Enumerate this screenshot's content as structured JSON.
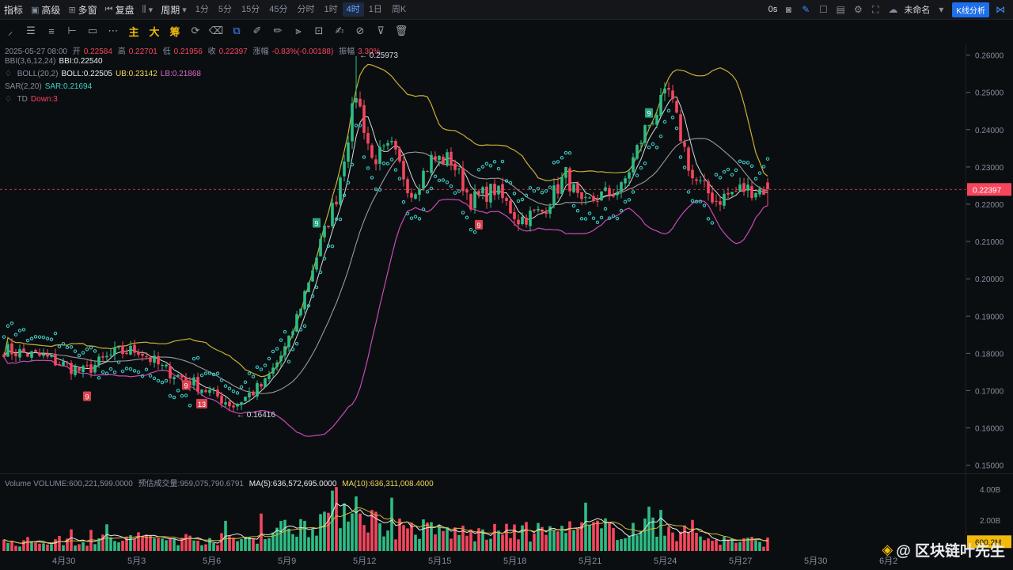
{
  "topbar": {
    "indicators": "指标",
    "advanced": "高级",
    "multi_window": "多窗",
    "replay": "复盘",
    "period_label": "周期",
    "periods": [
      "1分",
      "5分",
      "15分",
      "45分",
      "分时",
      "1时",
      "4时",
      "1日",
      "周K"
    ],
    "active_period": "4时",
    "countdown": "0s",
    "layout_name": "未命名",
    "kline_analysis": "K线分析"
  },
  "legend": {
    "datetime": "2025-05-27 08:00",
    "open_label": "开",
    "open": "0.22584",
    "high_label": "高",
    "high": "0.22701",
    "low_label": "低",
    "low": "0.21956",
    "close_label": "收",
    "close": "0.22397",
    "change_label": "涨幅",
    "change": "-0.83%(-0.00188)",
    "amp_label": "振幅",
    "amp": "3.30%",
    "bbi_name": "BBI(3,6,12,24)",
    "bbi_value": "BBI:0.22540",
    "boll_name": "BOLL(20,2)",
    "boll_value": "BOLL:0.22505",
    "ub_value": "UB:0.23142",
    "lb_value": "LB:0.21868",
    "sar_name": "SAR(2,20)",
    "sar_value": "SAR:0.21694",
    "td_name": "TD",
    "td_value": "Down:3"
  },
  "volume_legend": {
    "volume": "Volume  VOLUME:600,221,599.0000",
    "est": "预估成交量:959,075,790.6791",
    "ma5": "MA(5):636,572,695.0000",
    "ma10": "MA(10):636,311,008.4000"
  },
  "watermark": "@ 区块链叶先生",
  "colors": {
    "up": "#2ebd85",
    "down": "#f6465d",
    "ub": "#c9b037",
    "lb": "#c84bb8",
    "mid": "#d9d9d9",
    "sar": "#3bc7c0"
  },
  "chart_data": {
    "type": "candlestick",
    "price_axis": {
      "ticks": [
        0.26,
        0.25,
        0.24,
        0.23,
        0.22,
        0.21,
        0.2,
        0.19,
        0.18,
        0.17,
        0.16,
        0.15
      ],
      "ylim": [
        0.1478,
        0.2631
      ]
    },
    "volume_axis": {
      "ticks": [
        "4.00B",
        "2.00B"
      ],
      "ylim": [
        0,
        4.3
      ]
    },
    "x_labels": [
      "4月30",
      "5月3",
      "5月6",
      "5月9",
      "5月12",
      "5月15",
      "5月18",
      "5月21",
      "5月24",
      "5月27",
      "5月30",
      "6月2"
    ],
    "current_price": "0.22397",
    "current_volume": "600.2M",
    "high_marker": "0.25973",
    "low_marker": "0.16416",
    "td_markers": [
      {
        "label": "9",
        "x_index": 21,
        "price": 0.1685,
        "kind": "down"
      },
      {
        "label": "9",
        "x_index": 46,
        "price": 0.1715,
        "kind": "down"
      },
      {
        "label": "13",
        "x_index": 50,
        "price": 0.1665,
        "kind": "down"
      },
      {
        "label": "9",
        "x_index": 79,
        "price": 0.215,
        "kind": "up"
      },
      {
        "label": "9",
        "x_index": 120,
        "price": 0.2145,
        "kind": "down"
      },
      {
        "label": "9",
        "x_index": 163,
        "price": 0.2445,
        "kind": "up"
      }
    ],
    "close_keypoints": [
      [
        0,
        0.181
      ],
      [
        10,
        0.179
      ],
      [
        20,
        0.175
      ],
      [
        28,
        0.18
      ],
      [
        34,
        0.181
      ],
      [
        40,
        0.176
      ],
      [
        48,
        0.172
      ],
      [
        58,
        0.166
      ],
      [
        66,
        0.172
      ],
      [
        72,
        0.183
      ],
      [
        78,
        0.203
      ],
      [
        84,
        0.222
      ],
      [
        89,
        0.25
      ],
      [
        93,
        0.232
      ],
      [
        98,
        0.235
      ],
      [
        103,
        0.223
      ],
      [
        108,
        0.232
      ],
      [
        113,
        0.232
      ],
      [
        118,
        0.221
      ],
      [
        124,
        0.224
      ],
      [
        130,
        0.216
      ],
      [
        136,
        0.218
      ],
      [
        142,
        0.228
      ],
      [
        146,
        0.219
      ],
      [
        150,
        0.222
      ],
      [
        156,
        0.224
      ],
      [
        162,
        0.24
      ],
      [
        168,
        0.25
      ],
      [
        174,
        0.227
      ],
      [
        180,
        0.221
      ],
      [
        186,
        0.224
      ],
      [
        193,
        0.224
      ]
    ],
    "volume_keypoints": [
      [
        0,
        0.55
      ],
      [
        20,
        0.7
      ],
      [
        40,
        0.8
      ],
      [
        60,
        0.75
      ],
      [
        70,
        1.4
      ],
      [
        80,
        2.1
      ],
      [
        88,
        3.4
      ],
      [
        95,
        1.6
      ],
      [
        105,
        1.4
      ],
      [
        120,
        1.1
      ],
      [
        140,
        1.3
      ],
      [
        160,
        1.5
      ],
      [
        170,
        1.3
      ],
      [
        180,
        0.7
      ],
      [
        193,
        0.6
      ]
    ]
  }
}
